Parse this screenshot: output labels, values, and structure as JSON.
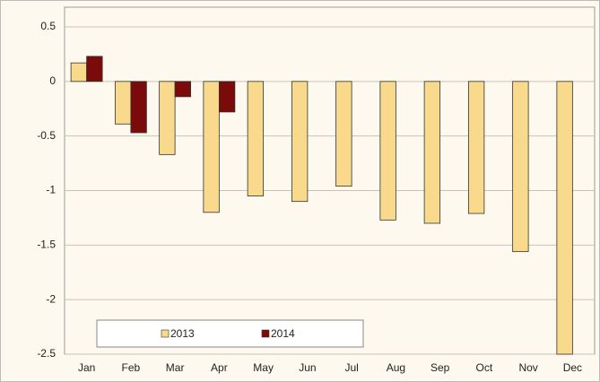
{
  "chart_data": {
    "type": "bar",
    "categories": [
      "Jan",
      "Feb",
      "Mar",
      "Apr",
      "May",
      "Jun",
      "Jul",
      "Aug",
      "Sep",
      "Oct",
      "Nov",
      "Dec"
    ],
    "series": [
      {
        "name": "2013",
        "color": "#f9d98c",
        "values": [
          0.17,
          -0.39,
          -0.67,
          -1.2,
          -1.05,
          -1.1,
          -0.96,
          -1.27,
          -1.3,
          -1.21,
          -1.56,
          -2.5
        ]
      },
      {
        "name": "2014",
        "color": "#7b0a0a",
        "values": [
          0.23,
          -0.47,
          -0.14,
          -0.28,
          null,
          null,
          null,
          null,
          null,
          null,
          null,
          null
        ]
      }
    ],
    "ylim": [
      -2.5,
      0.5
    ],
    "yticks": [
      -2.5,
      -2,
      -1.5,
      -1,
      -0.5,
      0,
      0.5
    ],
    "grid": true,
    "legend": "bottom-left"
  }
}
